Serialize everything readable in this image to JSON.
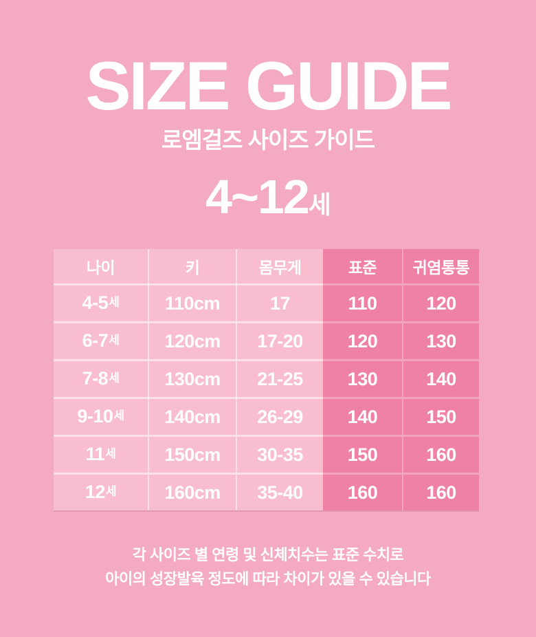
{
  "page": {
    "title": "SIZE GUIDE",
    "subtitle": "로엠걸즈 사이즈 가이드",
    "age_range": "4~12",
    "age_range_suffix": "세",
    "footnote": {
      "line1": "각 사이즈 별 연령 및 신체치수는 표준 수치로",
      "line2": "아이의 성장발육 정도에 따라 차이가 있을 수 있습니다"
    }
  },
  "colors": {
    "background": "#F4AAC2",
    "cell_light": "#F8BDCF",
    "cell_dark": "#EF81A7",
    "text": "#FFFFFF"
  },
  "size_table": {
    "headers": [
      "나이",
      "키",
      "몸무게",
      "표준",
      "귀염통통"
    ],
    "rows": [
      {
        "age": "4-5",
        "age_suffix": "세",
        "height": "110cm",
        "weight": "17",
        "standard": "110",
        "chubby": "120"
      },
      {
        "age": "6-7",
        "age_suffix": "세",
        "height": "120cm",
        "weight": "17-20",
        "standard": "120",
        "chubby": "130"
      },
      {
        "age": "7-8",
        "age_suffix": "세",
        "height": "130cm",
        "weight": "21-25",
        "standard": "130",
        "chubby": "140"
      },
      {
        "age": "9-10",
        "age_suffix": "세",
        "height": "140cm",
        "weight": "26-29",
        "standard": "140",
        "chubby": "150"
      },
      {
        "age": "11",
        "age_suffix": "세",
        "height": "150cm",
        "weight": "30-35",
        "standard": "150",
        "chubby": "160"
      },
      {
        "age": "12",
        "age_suffix": "세",
        "height": "160cm",
        "weight": "35-40",
        "standard": "160",
        "chubby": "160"
      }
    ]
  }
}
